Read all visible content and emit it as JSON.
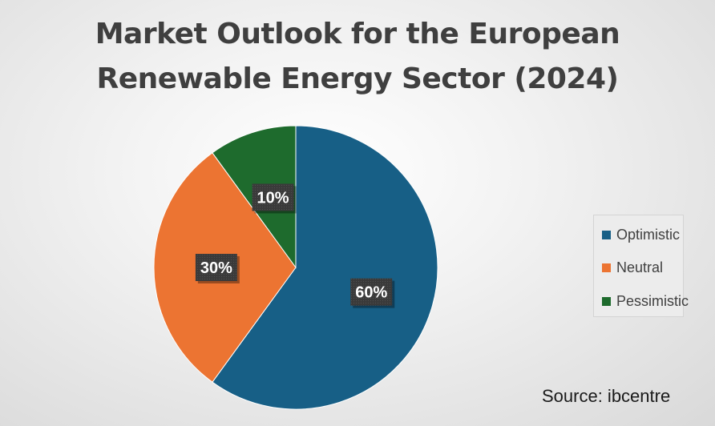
{
  "title_line1": "Market Outlook for the European",
  "title_line2": "Renewable Energy Sector (2024)",
  "source": "Source: ibcentre",
  "chart_data": {
    "type": "pie",
    "title": "Market Outlook for the European Renewable Energy Sector (2024)",
    "categories": [
      "Optimistic",
      "Neutral",
      "Pessimistic"
    ],
    "values": [
      60,
      30,
      10
    ],
    "labels": [
      "60%",
      "30%",
      "10%"
    ],
    "colors": [
      "#175f86",
      "#ec7432",
      "#1e6b2d"
    ],
    "legend_position": "right"
  },
  "legend": [
    {
      "label": "Optimistic",
      "color": "#175f86"
    },
    {
      "label": "Neutral",
      "color": "#ec7432"
    },
    {
      "label": "Pessimistic",
      "color": "#1e6b2d"
    }
  ]
}
